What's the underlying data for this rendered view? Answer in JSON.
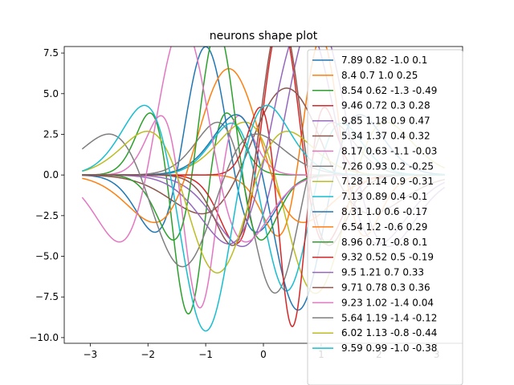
{
  "chart_data": {
    "type": "line",
    "title": "neurons shape plot",
    "xlabel": "",
    "ylabel": "",
    "xlim": [
      -3.45,
      3.45
    ],
    "ylim": [
      -10.35,
      7.9
    ],
    "x_ticks": [
      -3,
      -2,
      -1,
      0,
      1,
      2,
      3
    ],
    "x_tick_labels": [
      "−3",
      "−2",
      "−1",
      "0",
      "1",
      "2",
      "3"
    ],
    "y_ticks": [
      -10.0,
      -7.5,
      -5.0,
      -2.5,
      0.0,
      2.5,
      5.0,
      7.5
    ],
    "y_tick_labels": [
      "−10.0",
      "−7.5",
      "−5.0",
      "−2.5",
      "0.0",
      "2.5",
      "5.0",
      "7.5"
    ],
    "grid": false,
    "legend_position": "right",
    "series": [
      {
        "name": "7.89 0.82 -1.0 0.1",
        "color": "#1f77b4",
        "params": [
          7.89,
          0.82,
          -1.0,
          0.1
        ]
      },
      {
        "name": "8.4 0.7 1.0 0.25",
        "color": "#ff7f0e",
        "params": [
          8.4,
          0.7,
          1.0,
          0.25
        ]
      },
      {
        "name": "8.54 0.62 -1.3 -0.49",
        "color": "#2ca02c",
        "params": [
          8.54,
          0.62,
          -1.3,
          -0.49
        ]
      },
      {
        "name": "9.46 0.72 0.3 0.28",
        "color": "#d62728",
        "params": [
          9.46,
          0.72,
          0.3,
          0.28
        ]
      },
      {
        "name": "9.85 1.18 0.9 0.47",
        "color": "#9467bd",
        "params": [
          9.85,
          1.18,
          0.9,
          0.47
        ]
      },
      {
        "name": "5.34 1.37 0.4 0.32",
        "color": "#8c564b",
        "params": [
          5.34,
          1.37,
          0.4,
          0.32
        ]
      },
      {
        "name": "8.17 0.63 -1.1 -0.03",
        "color": "#e377c2",
        "params": [
          8.17,
          0.63,
          -1.1,
          -0.03
        ]
      },
      {
        "name": "7.26 0.93 0.2 -0.25",
        "color": "#7f7f7f",
        "params": [
          7.26,
          0.93,
          0.2,
          -0.25
        ]
      },
      {
        "name": "7.28 1.14 0.9 -0.31",
        "color": "#bcbd22",
        "params": [
          7.28,
          1.14,
          0.9,
          -0.31
        ]
      },
      {
        "name": "7.13 0.89 0.4 -0.1",
        "color": "#17becf",
        "params": [
          7.13,
          0.89,
          0.4,
          -0.1
        ]
      },
      {
        "name": "8.31 1.0 0.6 -0.17",
        "color": "#1f77b4",
        "params": [
          8.31,
          1.0,
          0.6,
          -0.17
        ]
      },
      {
        "name": "6.54 1.2 -0.6 0.29",
        "color": "#ff7f0e",
        "params": [
          6.54,
          1.2,
          -0.6,
          0.29
        ]
      },
      {
        "name": "8.96 0.71 -0.8 0.1",
        "color": "#2ca02c",
        "params": [
          8.96,
          0.71,
          -0.8,
          0.1
        ]
      },
      {
        "name": "9.32 0.52 0.5 -0.19",
        "color": "#d62728",
        "params": [
          9.32,
          0.52,
          0.5,
          -0.19
        ]
      },
      {
        "name": "9.5 1.21 0.7 0.33",
        "color": "#9467bd",
        "params": [
          9.5,
          1.21,
          0.7,
          0.33
        ]
      },
      {
        "name": "9.71 0.78 0.3 0.36",
        "color": "#8c564b",
        "params": [
          9.71,
          0.78,
          0.3,
          0.36
        ]
      },
      {
        "name": "9.23 1.02 -1.4 0.04",
        "color": "#e377c2",
        "params": [
          9.23,
          1.02,
          -1.4,
          0.04
        ]
      },
      {
        "name": "5.64 1.19 -1.4 -0.12",
        "color": "#7f7f7f",
        "params": [
          5.64,
          1.19,
          -1.4,
          -0.12
        ]
      },
      {
        "name": "6.02 1.13 -0.8 -0.44",
        "color": "#bcbd22",
        "params": [
          6.02,
          1.13,
          -0.8,
          -0.44
        ]
      },
      {
        "name": "9.59 0.99 -1.0 -0.38",
        "color": "#17becf",
        "params": [
          9.59,
          0.99,
          -1.0,
          -0.38
        ]
      }
    ]
  }
}
